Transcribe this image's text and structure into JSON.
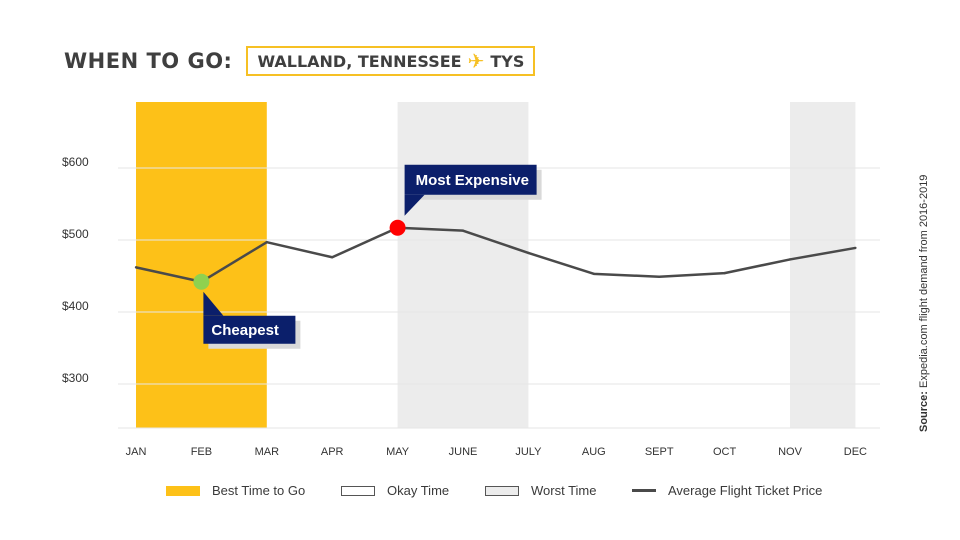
{
  "header": {
    "title": "WHEN TO GO:",
    "location": "WALLAND, TENNESSEE",
    "airport_code": "TYS",
    "plane_icon": "airplane-icon"
  },
  "source": {
    "label": "Source:",
    "text": " Expedia.com flight demand from 2016-2019"
  },
  "legend": {
    "best": "Best Time to Go",
    "okay": "Okay Time",
    "worst": "Worst Time",
    "line": "Average Flight Ticket Price"
  },
  "colors": {
    "best": "#fdc118",
    "worst": "#ececec",
    "line": "#4a4a4a",
    "cheapest": "#8fd14f",
    "expensive": "#ff0000",
    "callout": "#0b1f6b"
  },
  "chart_data": {
    "type": "line",
    "categories": [
      "JAN",
      "FEB",
      "MAR",
      "APR",
      "MAY",
      "JUNE",
      "JULY",
      "AUG",
      "SEPT",
      "OCT",
      "NOV",
      "DEC"
    ],
    "series": [
      {
        "name": "Average Flight Ticket Price",
        "values": [
          462,
          442,
          497,
          476,
          517,
          513,
          482,
          453,
          449,
          454,
          473,
          489
        ]
      }
    ],
    "yticks": [
      300,
      400,
      500,
      600
    ],
    "ytick_labels": [
      "$300",
      "$400",
      "$500",
      "$600"
    ],
    "ylim": [
      240,
      690
    ],
    "grid": true,
    "periods": [
      {
        "kind": "best",
        "from": "JAN",
        "to": "MAR"
      },
      {
        "kind": "worst",
        "from": "MAY",
        "to": "JULY"
      },
      {
        "kind": "worst",
        "from": "NOV",
        "to": "DEC"
      }
    ],
    "annotations": [
      {
        "label": "Cheapest",
        "month": "FEB",
        "value": 442,
        "kind": "cheapest"
      },
      {
        "label": "Most Expensive",
        "month": "MAY",
        "value": 517,
        "kind": "expensive"
      }
    ],
    "legend_position": "bottom"
  }
}
